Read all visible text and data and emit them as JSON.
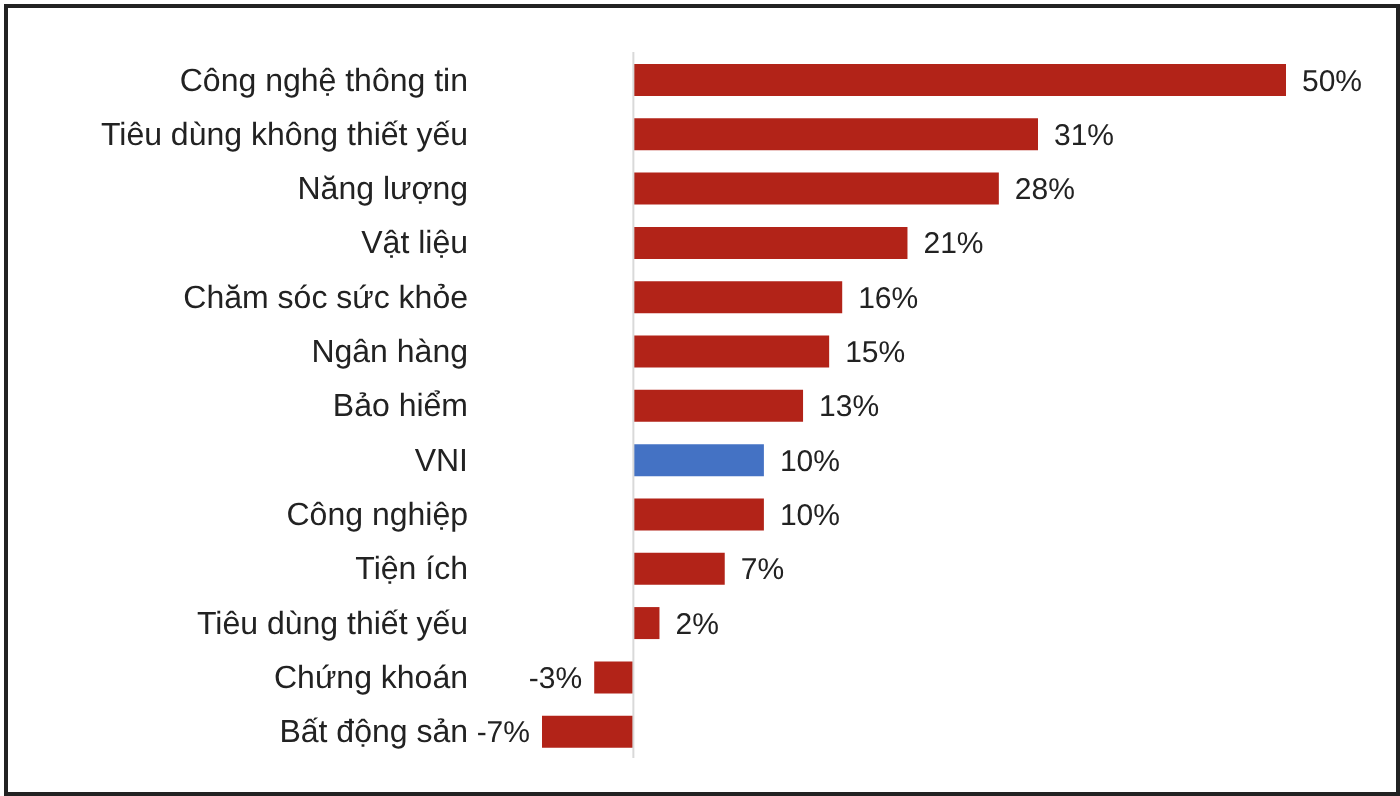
{
  "chart_data": {
    "type": "bar",
    "orientation": "horizontal",
    "categories": [
      "Công nghệ thông tin",
      "Tiêu dùng không thiết yếu",
      "Năng lượng",
      "Vật liệu",
      "Chăm sóc sức khỏe",
      "Ngân hàng",
      "Bảo hiểm",
      "VNI",
      "Công nghiệp",
      "Tiện ích",
      "Tiêu dùng thiết yếu",
      "Chứng khoán",
      "Bất động sản"
    ],
    "values": [
      50,
      31,
      28,
      21,
      16,
      15,
      13,
      10,
      10,
      7,
      2,
      -3,
      -7
    ],
    "value_labels": [
      "50%",
      "31%",
      "28%",
      "21%",
      "16%",
      "15%",
      "13%",
      "10%",
      "10%",
      "7%",
      "2%",
      "-3%",
      "-7%"
    ],
    "colors": [
      "#b22318",
      "#b22318",
      "#b22318",
      "#b22318",
      "#b22318",
      "#b22318",
      "#b22318",
      "#4472c4",
      "#b22318",
      "#b22318",
      "#b22318",
      "#b22318",
      "#b22318"
    ],
    "ref_lines": [
      {
        "axis": "x",
        "value": 0,
        "color": "#d9d9d9"
      }
    ]
  }
}
